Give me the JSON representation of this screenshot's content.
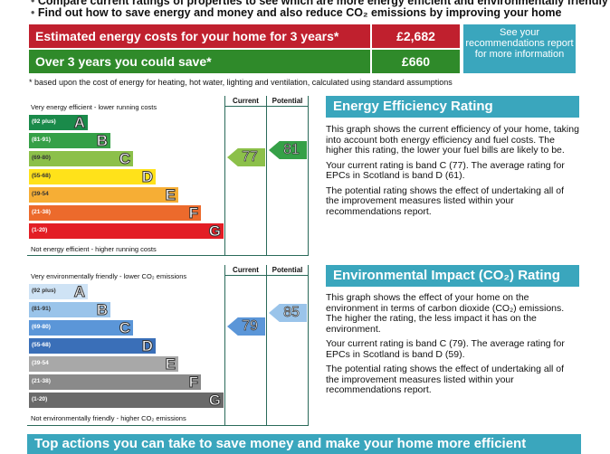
{
  "bullets": [
    "Compare current ratings of properties to see which are more energy efficient and environmentally friendly",
    "Find out how to save energy and money and also reduce CO₂ emissions by improving your home"
  ],
  "costs": {
    "row1_label": "Estimated energy costs for your home for 3 years*",
    "row1_value": "£2,682",
    "row2_label": "Over 3 years you could save*",
    "row2_value": "£660",
    "see_link": "See your recommendations report for more information",
    "footnote": "* based upon the cost of energy for heating, hot water, lighting and ventilation, calculated using standard assumptions",
    "colors": {
      "red": "#c0202e",
      "green": "#2f8a2a",
      "teal": "#3aa6bd"
    }
  },
  "energy": {
    "top": "Very energy efficient - lower running costs",
    "bottom": "Not energy efficient - higher running costs",
    "current_header": "Current",
    "potential_header": "Potential",
    "current": "77",
    "potential": "81",
    "current_color": "#8cc04a",
    "potential_color": "#35a047",
    "bands": [
      {
        "range": "(92 plus)",
        "letter": "A",
        "color": "#1a8a4a"
      },
      {
        "range": "(81-91)",
        "letter": "B",
        "color": "#35a047"
      },
      {
        "range": "(69-80)",
        "letter": "C",
        "color": "#8cc04a"
      },
      {
        "range": "(55-68)",
        "letter": "D",
        "color": "#ffe21a"
      },
      {
        "range": "(39-54",
        "letter": "E",
        "color": "#f6ae35"
      },
      {
        "range": "(21-38)",
        "letter": "F",
        "color": "#ec6a2c"
      },
      {
        "range": "(1-20)",
        "letter": "G",
        "color": "#e31d25"
      }
    ]
  },
  "env": {
    "top": "Very environmentally friendly - lower CO₂ emissions",
    "bottom": "Not environmentally friendly - higher CO₂ emissions",
    "current_header": "Current",
    "potential_header": "Potential",
    "current": "79",
    "potential": "85",
    "current_color": "#5b96d8",
    "potential_color": "#9ac4ea",
    "bands": [
      {
        "range": "(92 plus)",
        "letter": "A",
        "color": "#cfe3f5"
      },
      {
        "range": "(81-91)",
        "letter": "B",
        "color": "#9ac4ea"
      },
      {
        "range": "(69-80)",
        "letter": "C",
        "color": "#5b96d8"
      },
      {
        "range": "(55-68)",
        "letter": "D",
        "color": "#3a6fb8"
      },
      {
        "range": "(39-54",
        "letter": "E",
        "color": "#a8a8a8"
      },
      {
        "range": "(21-38)",
        "letter": "F",
        "color": "#8a8a8a"
      },
      {
        "range": "(1-20)",
        "letter": "G",
        "color": "#6a6a6a"
      }
    ]
  },
  "eer": {
    "heading": "Energy Efficiency Rating",
    "p1": "This graph shows the current efficiency of your home, taking into account both energy efficiency and fuel costs. The higher this rating, the lower your fuel bills are likely to be.",
    "p2": "Your current rating is band C (77). The average rating for EPCs in Scotland is band D (61).",
    "p3": "The potential rating shows the effect of undertaking all of the improvement measures listed within your recommendations report."
  },
  "eir": {
    "heading": "Environmental Impact (CO₂) Rating",
    "p1": "This graph shows the effect of your home on the environment in terms of carbon dioxide (CO₂) emissions. The higher the rating, the less impact it has on the environment.",
    "p2": "Your current rating is band C (79). The average rating for EPCs in Scotland is band D (59).",
    "p3": "The potential rating shows the effect of undertaking all of the improvement measures listed within your recommendations report."
  },
  "banner": "Top actions you can take to save money and make your home more efficient"
}
